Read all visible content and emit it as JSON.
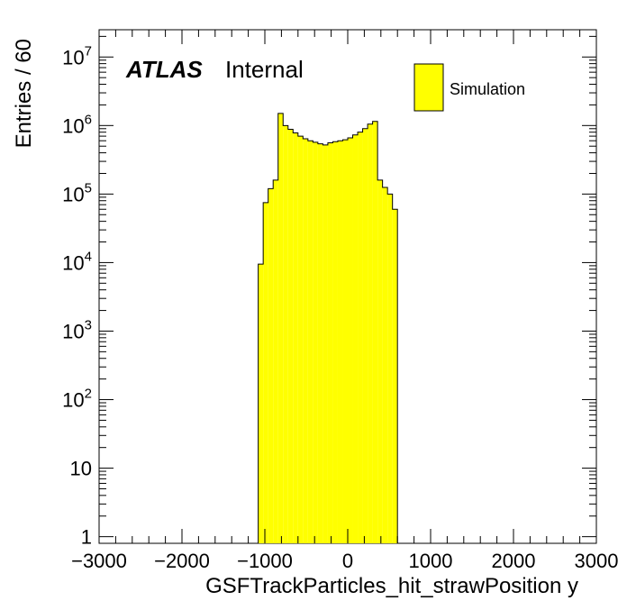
{
  "chart_data": {
    "type": "histogram",
    "xlabel": "GSFTrackParticles_hit_strawPosition y",
    "ylabel": "Entries / 60",
    "xlim": [
      -3000,
      3000
    ],
    "ylim": [
      0.8,
      25000000
    ],
    "yscale": "log",
    "grid": false,
    "x_ticks": [
      -3000,
      -2000,
      -1000,
      0,
      1000,
      2000,
      3000
    ],
    "x_tick_labels": [
      "−3000",
      "−2000",
      "−1000",
      "0",
      "1000",
      "2000",
      "3000"
    ],
    "y_ticks": [
      {
        "value": 1,
        "base": "1",
        "exp": ""
      },
      {
        "value": 10,
        "base": "10",
        "exp": ""
      },
      {
        "value": 100,
        "base": "10",
        "exp": "2"
      },
      {
        "value": 1000,
        "base": "10",
        "exp": "3"
      },
      {
        "value": 10000,
        "base": "10",
        "exp": "4"
      },
      {
        "value": 100000,
        "base": "10",
        "exp": "5"
      },
      {
        "value": 1000000,
        "base": "10",
        "exp": "6"
      },
      {
        "value": 10000000,
        "base": "10",
        "exp": "7"
      }
    ],
    "bin_width": 60,
    "series": [
      {
        "name": "Simulation",
        "color": "#ffff00",
        "edge_color": "#000000",
        "bin_edges_start": -1080,
        "values": [
          9500,
          75000,
          120000,
          160000,
          1500000,
          1000000,
          880000,
          780000,
          700000,
          640000,
          600000,
          570000,
          540000,
          520000,
          560000,
          580000,
          600000,
          620000,
          660000,
          730000,
          800000,
          900000,
          1050000,
          1150000,
          160000,
          125000,
          100000,
          60000
        ]
      }
    ],
    "annotations": {
      "atlas": "ATLAS",
      "internal": "Internal"
    },
    "legend": {
      "placement": "top-right",
      "entries": [
        {
          "label": "Simulation",
          "color": "#ffff00"
        }
      ]
    }
  }
}
